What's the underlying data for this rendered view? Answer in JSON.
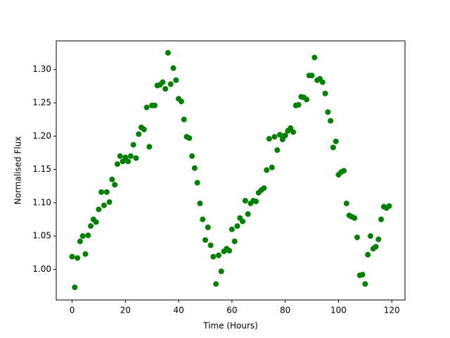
{
  "chart_data": {
    "type": "scatter",
    "x_label": "Time (Hours)",
    "y_label": "Normalised Flux",
    "series": [
      {
        "color": "#008000",
        "x": [
          0,
          1,
          2,
          3,
          4,
          5,
          6,
          7,
          8,
          9,
          10,
          11,
          12,
          13,
          14,
          15,
          16,
          17,
          18,
          19,
          20,
          21,
          22,
          23,
          24,
          25,
          26,
          27,
          28,
          29,
          30,
          31,
          32,
          33,
          34,
          35,
          36,
          37,
          38,
          39,
          40,
          41,
          42,
          43,
          44,
          45,
          46,
          47,
          48,
          49,
          50,
          51,
          52,
          53,
          54,
          55,
          56,
          57,
          58,
          59,
          60,
          61,
          62,
          63,
          64,
          65,
          66,
          67,
          68,
          69,
          70,
          71,
          72,
          73,
          74,
          75,
          76,
          77,
          78,
          79,
          80,
          81,
          82,
          83,
          84,
          85,
          86,
          87,
          88,
          89,
          90,
          91,
          92,
          93,
          94,
          95,
          96,
          97,
          98,
          99,
          100,
          101,
          102,
          103,
          104,
          105,
          106,
          107,
          108,
          109,
          110,
          111,
          112,
          113,
          114,
          115,
          116,
          117,
          118,
          119
        ],
        "values": [
          1.019,
          0.973,
          1.017,
          1.042,
          1.05,
          1.023,
          1.051,
          1.065,
          1.075,
          1.071,
          1.09,
          1.116,
          1.096,
          1.116,
          1.101,
          1.135,
          1.127,
          1.158,
          1.17,
          1.162,
          1.168,
          1.162,
          1.17,
          1.187,
          1.167,
          1.203,
          1.213,
          1.21,
          1.243,
          1.184,
          1.246,
          1.246,
          1.276,
          1.277,
          1.281,
          1.271,
          1.325,
          1.278,
          1.302,
          1.284,
          1.256,
          1.252,
          1.225,
          1.199,
          1.197,
          1.17,
          1.152,
          1.13,
          1.099,
          1.075,
          1.044,
          1.063,
          1.036,
          1.019,
          0.978,
          1.021,
          0.997,
          1.027,
          1.031,
          1.028,
          1.06,
          1.042,
          1.065,
          1.077,
          1.072,
          1.103,
          1.083,
          1.099,
          1.103,
          1.102,
          1.115,
          1.119,
          1.122,
          1.149,
          1.196,
          1.153,
          1.199,
          1.179,
          1.202,
          1.195,
          1.201,
          1.208,
          1.212,
          1.206,
          1.246,
          1.247,
          1.259,
          1.258,
          1.255,
          1.291,
          1.291,
          1.318,
          1.284,
          1.286,
          1.281,
          1.264,
          1.236,
          1.223,
          1.183,
          1.192,
          1.142,
          1.146,
          1.148,
          1.099,
          1.081,
          1.079,
          1.077,
          1.048,
          0.991,
          0.992,
          0.978,
          1.022,
          1.05,
          1.031,
          1.034,
          1.045,
          1.075,
          1.094,
          1.092,
          1.095
        ]
      }
    ],
    "xlim": [
      -5.95,
      124.95
    ],
    "xticks": [
      0,
      20,
      40,
      60,
      80,
      100,
      120
    ],
    "ylim": [
      0.954,
      1.343
    ],
    "yticks": [
      {
        "value": 1.0,
        "label": "1.00"
      },
      {
        "value": 1.05,
        "label": "1.05"
      },
      {
        "value": 1.1,
        "label": "1.10"
      },
      {
        "value": 1.15,
        "label": "1.15"
      },
      {
        "value": 1.2,
        "label": "1.20"
      },
      {
        "value": 1.25,
        "label": "1.25"
      },
      {
        "value": 1.3,
        "label": "1.30"
      }
    ],
    "grid": false
  }
}
